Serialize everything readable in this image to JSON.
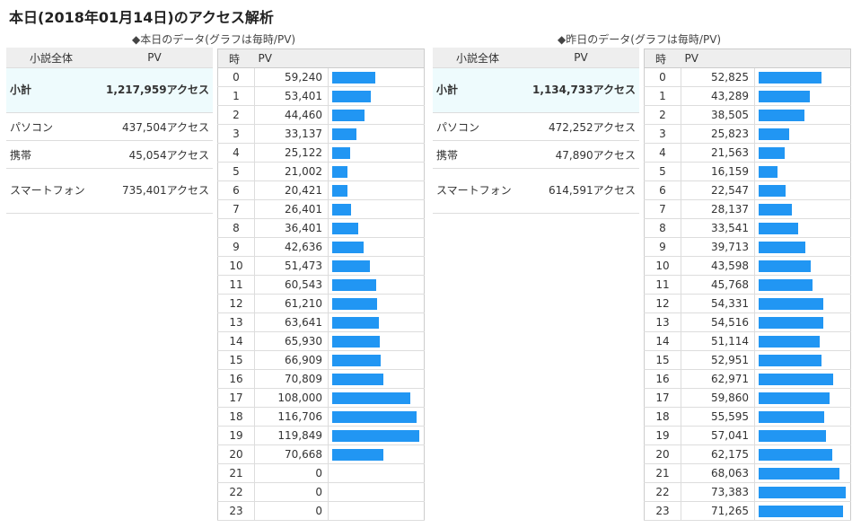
{
  "title": "本日(2018年01月14日)のアクセス解析",
  "colors": {
    "bar": "#2196f3",
    "header_bg": "#eeeeee",
    "subtotal_bg": "#eefbfd"
  },
  "today": {
    "caption": "◆本日のデータ(グラフは毎時/PV)",
    "summary": {
      "col_label": "小説全体",
      "col_value": "PV",
      "rows": [
        {
          "label": "小計",
          "value": "1,217,959アクセス"
        },
        {
          "label": "パソコン",
          "value": "437,504アクセス"
        },
        {
          "label": "携帯",
          "value": "45,054アクセス"
        },
        {
          "label": "スマートフォン",
          "value": "735,401アクセス"
        }
      ]
    },
    "hourly_header": {
      "hour": "時",
      "pv": "PV"
    },
    "hourly": [
      {
        "hour": "0",
        "pv": "59,240"
      },
      {
        "hour": "1",
        "pv": "53,401"
      },
      {
        "hour": "2",
        "pv": "44,460"
      },
      {
        "hour": "3",
        "pv": "33,137"
      },
      {
        "hour": "4",
        "pv": "25,122"
      },
      {
        "hour": "5",
        "pv": "21,002"
      },
      {
        "hour": "6",
        "pv": "20,421"
      },
      {
        "hour": "7",
        "pv": "26,401"
      },
      {
        "hour": "8",
        "pv": "36,401"
      },
      {
        "hour": "9",
        "pv": "42,636"
      },
      {
        "hour": "10",
        "pv": "51,473"
      },
      {
        "hour": "11",
        "pv": "60,543"
      },
      {
        "hour": "12",
        "pv": "61,210"
      },
      {
        "hour": "13",
        "pv": "63,641"
      },
      {
        "hour": "14",
        "pv": "65,930"
      },
      {
        "hour": "15",
        "pv": "66,909"
      },
      {
        "hour": "16",
        "pv": "70,809"
      },
      {
        "hour": "17",
        "pv": "108,000"
      },
      {
        "hour": "18",
        "pv": "116,706"
      },
      {
        "hour": "19",
        "pv": "119,849"
      },
      {
        "hour": "20",
        "pv": "70,668"
      },
      {
        "hour": "21",
        "pv": "0"
      },
      {
        "hour": "22",
        "pv": "0"
      },
      {
        "hour": "23",
        "pv": "0"
      }
    ]
  },
  "yesterday": {
    "caption": "◆昨日のデータ(グラフは毎時/PV)",
    "summary": {
      "col_label": "小説全体",
      "col_value": "PV",
      "rows": [
        {
          "label": "小計",
          "value": "1,134,733アクセス"
        },
        {
          "label": "パソコン",
          "value": "472,252アクセス"
        },
        {
          "label": "携帯",
          "value": "47,890アクセス"
        },
        {
          "label": "スマートフォン",
          "value": "614,591アクセス"
        }
      ]
    },
    "hourly_header": {
      "hour": "時",
      "pv": "PV"
    },
    "hourly": [
      {
        "hour": "0",
        "pv": "52,825"
      },
      {
        "hour": "1",
        "pv": "43,289"
      },
      {
        "hour": "2",
        "pv": "38,505"
      },
      {
        "hour": "3",
        "pv": "25,823"
      },
      {
        "hour": "4",
        "pv": "21,563"
      },
      {
        "hour": "5",
        "pv": "16,159"
      },
      {
        "hour": "6",
        "pv": "22,547"
      },
      {
        "hour": "7",
        "pv": "28,137"
      },
      {
        "hour": "8",
        "pv": "33,541"
      },
      {
        "hour": "9",
        "pv": "39,713"
      },
      {
        "hour": "10",
        "pv": "43,598"
      },
      {
        "hour": "11",
        "pv": "45,768"
      },
      {
        "hour": "12",
        "pv": "54,331"
      },
      {
        "hour": "13",
        "pv": "54,516"
      },
      {
        "hour": "14",
        "pv": "51,114"
      },
      {
        "hour": "15",
        "pv": "52,951"
      },
      {
        "hour": "16",
        "pv": "62,971"
      },
      {
        "hour": "17",
        "pv": "59,860"
      },
      {
        "hour": "18",
        "pv": "55,595"
      },
      {
        "hour": "19",
        "pv": "57,041"
      },
      {
        "hour": "20",
        "pv": "62,175"
      },
      {
        "hour": "21",
        "pv": "68,063"
      },
      {
        "hour": "22",
        "pv": "73,383"
      },
      {
        "hour": "23",
        "pv": "71,265"
      }
    ]
  }
}
